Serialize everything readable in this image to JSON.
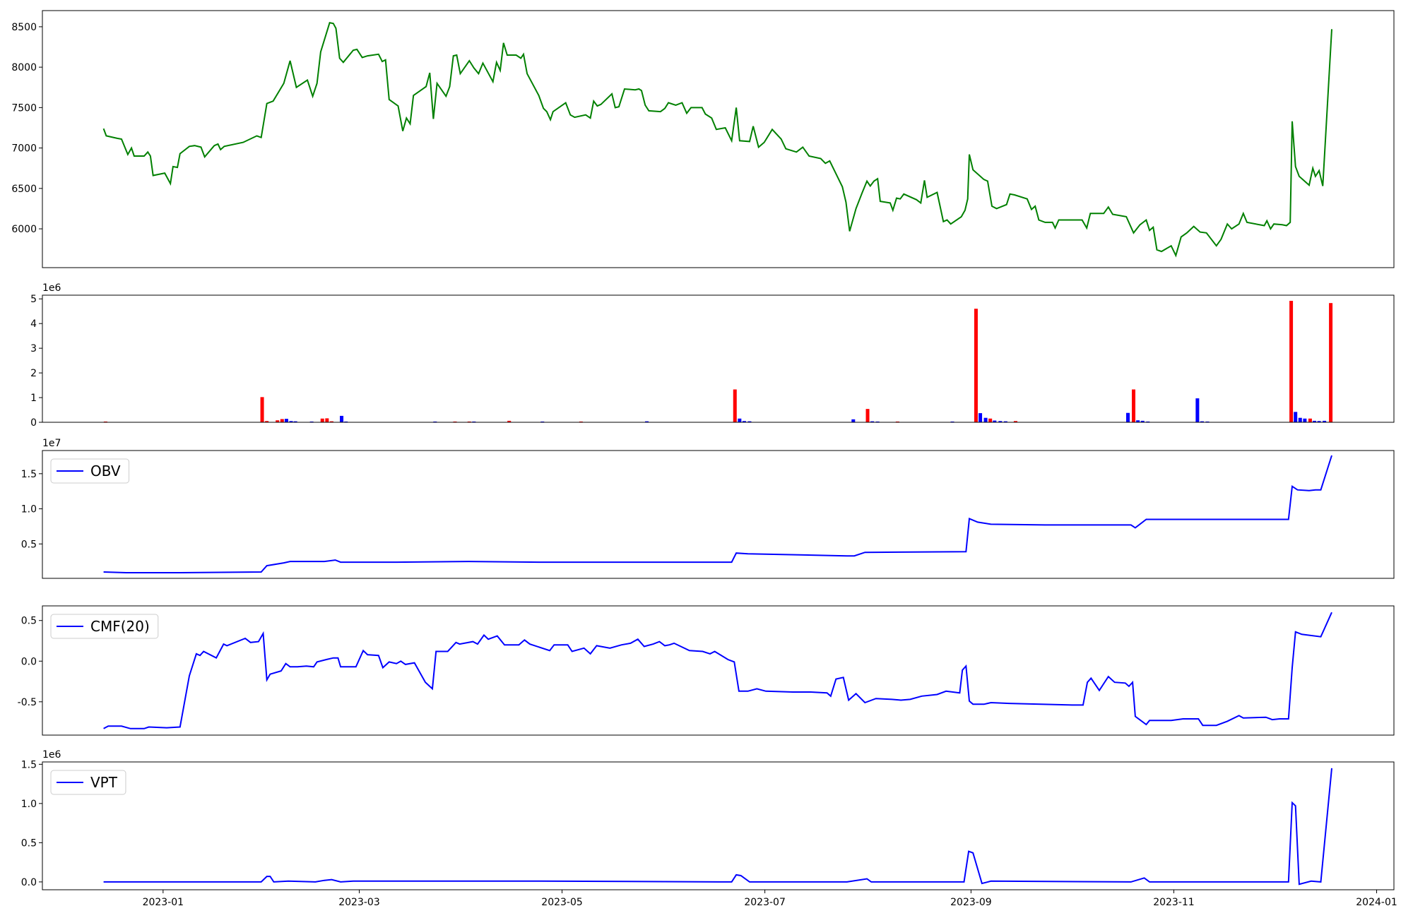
{
  "chart_data": [
    {
      "type": "line",
      "xlim": [
        -36.3,
        370.2
      ],
      "ylim": [
        5520,
        8700
      ],
      "yticks": [
        6000,
        6500,
        7000,
        7500,
        8000,
        8500
      ],
      "x": [
        -17.9,
        -17.1,
        -13.8,
        -12.5,
        -10.6,
        -9.5,
        -8.7,
        -5.7,
        -4.6,
        -3.8,
        -3.0,
        0.5,
        2.2,
        3.0,
        4.3,
        5.1,
        7.9,
        9.5,
        11.4,
        12.5,
        15.4,
        16.5,
        17.3,
        18.4,
        24.1,
        28.2,
        29.5,
        31.2,
        33.1,
        36.3,
        38.2,
        40.1,
        43.4,
        45.0,
        46.3,
        47.4,
        50.1,
        51.2,
        52.0,
        53.1,
        54.2,
        57.2,
        58.3,
        59.9,
        61.5,
        64.8,
        65.9,
        66.9,
        68.0,
        70.7,
        72.1,
        73.2,
        74.3,
        75.3,
        79.1,
        80.2,
        81.3,
        82.4,
        85.1,
        86.2,
        87.3,
        88.3,
        89.4,
        92.1,
        93.5,
        94.9,
        96.2,
        99.2,
        100.3,
        101.4,
        102.4,
        103.5,
        106.2,
        107.6,
        108.4,
        109.5,
        113.0,
        114.4,
        115.4,
        116.5,
        117.3,
        121.1,
        122.5,
        123.8,
        127.1,
        128.5,
        129.5,
        130.6,
        131.7,
        135.0,
        136.0,
        137.1,
        138.8,
        142.0,
        143.1,
        143.9,
        145.0,
        146.1,
        149.6,
        150.9,
        152.0,
        154.2,
        156.1,
        157.5,
        158.8,
        162.1,
        163.1,
        165.0,
        166.4,
        169.1,
        171.0,
        172.4,
        173.4,
        176.4,
        177.5,
        179.1,
        180.8,
        183.2,
        185.9,
        187.3,
        190.5,
        192.4,
        194.3,
        197.8,
        199.2,
        200.5,
        204.3,
        205.4,
        206.5,
        208.4,
        210.3,
        211.7,
        212.7,
        213.8,
        214.9,
        215.7,
        218.7,
        219.5,
        220.6,
        221.7,
        222.8,
        226.6,
        227.9,
        229.0,
        229.8,
        232.8,
        234.7,
        235.8,
        236.9,
        240.1,
        241.2,
        242.0,
        242.5,
        243.6,
        246.9,
        248.0,
        249.3,
        250.7,
        253.7,
        254.7,
        256.1,
        259.9,
        261.2,
        262.3,
        263.4,
        265.3,
        267.5,
        268.3,
        269.4,
        276.4,
        277.8,
        278.9,
        282.9,
        284.3,
        285.6,
        289.7,
        291.9,
        293.8,
        295.7,
        296.7,
        297.8,
        298.9,
        300.3,
        303.2,
        304.6,
        306.2,
        307.9,
        310.0,
        311.9,
        313.8,
        316.8,
        318.2,
        320.1,
        321.4,
        323.6,
        324.9,
        326.0,
        331.2,
        332.0,
        333.1,
        334.1,
        336.6,
        337.9,
        339.0,
        339.6,
        340.6,
        341.7,
        344.7,
        345.8,
        346.6,
        347.7,
        348.8,
        351.5
      ],
      "series": [
        {
          "color": "#008000",
          "values": [
            7240,
            7150,
            7120,
            7110,
            6920,
            7000,
            6900,
            6900,
            6950,
            6900,
            6660,
            6690,
            6560,
            6770,
            6760,
            6930,
            7020,
            7030,
            7010,
            6890,
            7030,
            7050,
            6980,
            7020,
            7070,
            7150,
            7130,
            7550,
            7580,
            7800,
            8080,
            7750,
            7840,
            7640,
            7800,
            8190,
            8550,
            8540,
            8480,
            8110,
            8060,
            8210,
            8220,
            8120,
            8140,
            8160,
            8070,
            8090,
            7600,
            7520,
            7210,
            7370,
            7300,
            7650,
            7760,
            7930,
            7360,
            7800,
            7640,
            7760,
            8140,
            8150,
            7920,
            8080,
            7990,
            7920,
            8050,
            7820,
            8060,
            7960,
            8300,
            8150,
            8150,
            8110,
            8160,
            7920,
            7650,
            7490,
            7450,
            7350,
            7450,
            7560,
            7410,
            7380,
            7410,
            7370,
            7580,
            7520,
            7540,
            7670,
            7500,
            7510,
            7730,
            7720,
            7730,
            7710,
            7530,
            7460,
            7450,
            7490,
            7560,
            7530,
            7560,
            7430,
            7500,
            7500,
            7420,
            7370,
            7230,
            7250,
            7090,
            7500,
            7090,
            7080,
            7270,
            7010,
            7070,
            7230,
            7110,
            6990,
            6950,
            7010,
            6900,
            6870,
            6810,
            6840,
            6520,
            6330,
            5970,
            6250,
            6450,
            6590,
            6530,
            6590,
            6620,
            6340,
            6320,
            6230,
            6380,
            6370,
            6430,
            6360,
            6320,
            6600,
            6390,
            6450,
            6090,
            6110,
            6060,
            6150,
            6230,
            6370,
            6920,
            6730,
            6610,
            6590,
            6280,
            6250,
            6300,
            6430,
            6420,
            6370,
            6240,
            6280,
            6110,
            6080,
            6080,
            6010,
            6110,
            6110,
            6010,
            6190,
            6190,
            6270,
            6180,
            6150,
            5950,
            6050,
            6110,
            5980,
            6020,
            5740,
            5720,
            5790,
            5670,
            5900,
            5950,
            6030,
            5960,
            5950,
            5790,
            5870,
            6060,
            6000,
            6060,
            6190,
            6080,
            6040,
            6100,
            6000,
            6060,
            6050,
            6040,
            6080,
            7330,
            6770,
            6650,
            6540,
            6750,
            6650,
            6720,
            6530,
            8470
          ]
        }
      ]
    },
    {
      "type": "bar",
      "xlim": [
        -36.3,
        370.2
      ],
      "ylim": [
        0,
        5.15
      ],
      "yticks": [
        0,
        1,
        2,
        3,
        4,
        5
      ],
      "offset_label": "1e6",
      "x": [
        -17.3,
        29.8,
        31.2,
        34.4,
        35.8,
        37.1,
        38.5,
        39.8,
        44.7,
        47.9,
        49.3,
        50.7,
        53.7,
        55.0,
        81.8,
        87.8,
        92.1,
        93.5,
        104.1,
        114.1,
        125.7,
        145.5,
        172.0,
        173.4,
        174.8,
        176.4,
        207.6,
        211.9,
        213.3,
        214.9,
        220.9,
        237.4,
        244.5,
        245.8,
        247.4,
        248.8,
        250.1,
        251.8,
        253.4,
        256.4,
        290.2,
        291.9,
        293.2,
        294.6,
        296.2,
        311.1,
        312.5,
        314.1,
        339.3,
        340.6,
        342.0,
        343.4,
        345.0,
        346.3,
        347.7,
        349.3,
        351.2
      ],
      "values": [
        0.03,
        1.02,
        0.05,
        0.08,
        0.13,
        0.14,
        0.05,
        0.04,
        0.03,
        0.15,
        0.16,
        0.04,
        0.26,
        0.03,
        0.03,
        0.03,
        0.03,
        0.03,
        0.06,
        0.03,
        0.03,
        0.04,
        1.33,
        0.15,
        0.05,
        0.04,
        0.12,
        0.54,
        0.04,
        0.03,
        0.03,
        0.03,
        4.6,
        0.37,
        0.18,
        0.15,
        0.07,
        0.05,
        0.04,
        0.05,
        0.38,
        1.33,
        0.08,
        0.06,
        0.03,
        0.97,
        0.04,
        0.03,
        4.92,
        0.42,
        0.18,
        0.15,
        0.15,
        0.06,
        0.05,
        0.06,
        4.83
      ],
      "colors": [
        "#ff0000",
        "#ff0000",
        "#ff0000",
        "#ff0000",
        "#ff0000",
        "#0000ff",
        "#0000ff",
        "#0000ff",
        "#0000ff",
        "#ff0000",
        "#ff0000",
        "#ff0000",
        "#0000ff",
        "#0000ff",
        "#0000ff",
        "#ff0000",
        "#ff0000",
        "#0000ff",
        "#ff0000",
        "#0000ff",
        "#ff0000",
        "#0000ff",
        "#ff0000",
        "#0000ff",
        "#0000ff",
        "#0000ff",
        "#0000ff",
        "#ff0000",
        "#0000ff",
        "#0000ff",
        "#ff0000",
        "#0000ff",
        "#ff0000",
        "#0000ff",
        "#0000ff",
        "#ff0000",
        "#0000ff",
        "#0000ff",
        "#0000ff",
        "#ff0000",
        "#0000ff",
        "#ff0000",
        "#0000ff",
        "#0000ff",
        "#0000ff",
        "#0000ff",
        "#0000ff",
        "#0000ff",
        "#ff0000",
        "#0000ff",
        "#0000ff",
        "#0000ff",
        "#ff0000",
        "#0000ff",
        "#0000ff",
        "#0000ff",
        "#ff0000"
      ]
    },
    {
      "type": "line",
      "xlim": [
        -36.3,
        370.2
      ],
      "ylim": [
        0.01,
        1.83
      ],
      "yticks": [
        0.5,
        {
          "value": 1.0,
          "label": "1.0"
        },
        1.5
      ],
      "offset_label": "1e7",
      "legend": "upper left",
      "x": [
        -17.9,
        -11.1,
        5.1,
        29.5,
        31.2,
        36.3,
        38.2,
        48.5,
        51.8,
        53.4,
        70.2,
        91.9,
        113.5,
        140.6,
        171.0,
        172.4,
        175.9,
        205.7,
        207.9,
        211.1,
        241.5,
        242.5,
        245.0,
        249.0,
        265.3,
        291.1,
        292.4,
        295.7,
        308.7,
        338.5,
        339.6,
        341.2,
        344.7,
        346.6,
        348.2,
        351.5
      ],
      "series": [
        {
          "name": "OBV",
          "color": "#0000ff",
          "values": [
            0.1,
            0.09,
            0.09,
            0.1,
            0.19,
            0.23,
            0.25,
            0.25,
            0.27,
            0.24,
            0.24,
            0.25,
            0.24,
            0.24,
            0.24,
            0.37,
            0.36,
            0.33,
            0.33,
            0.38,
            0.39,
            0.86,
            0.81,
            0.78,
            0.77,
            0.77,
            0.73,
            0.85,
            0.85,
            0.85,
            1.32,
            1.27,
            1.26,
            1.27,
            1.27,
            1.76
          ]
        }
      ]
    },
    {
      "type": "line",
      "xlim": [
        -36.3,
        370.2
      ],
      "ylim": [
        -0.91,
        0.68
      ],
      "yticks": [
        -0.5,
        {
          "value": 0,
          "label": "0.0"
        },
        0.5
      ],
      "legend": "upper left",
      "x": [
        -17.9,
        -16.5,
        -12.5,
        -9.8,
        -5.7,
        -4.3,
        1.1,
        5.1,
        7.9,
        10.0,
        11.1,
        12.2,
        16.0,
        18.2,
        19.2,
        24.7,
        26.3,
        28.7,
        30.1,
        31.2,
        32.2,
        35.5,
        36.9,
        38.2,
        40.4,
        43.1,
        45.3,
        46.3,
        49.1,
        51.2,
        52.6,
        53.4,
        58.0,
        60.2,
        61.5,
        64.8,
        66.1,
        68.0,
        70.2,
        71.5,
        72.9,
        75.6,
        78.9,
        81.0,
        82.1,
        85.6,
        88.1,
        89.2,
        93.2,
        94.6,
        96.5,
        97.8,
        100.5,
        102.7,
        107.0,
        108.7,
        110.3,
        116.3,
        117.6,
        121.7,
        123.0,
        126.6,
        128.5,
        130.4,
        134.4,
        137.9,
        140.6,
        142.8,
        144.7,
        147.4,
        149.3,
        150.9,
        152.3,
        153.7,
        158.3,
        162.3,
        164.5,
        165.9,
        169.9,
        171.8,
        173.2,
        175.9,
        178.6,
        181.3,
        189.4,
        194.8,
        199.7,
        200.8,
        202.4,
        204.6,
        206.2,
        208.4,
        211.1,
        214.4,
        219.2,
        221.9,
        224.7,
        228.2,
        232.8,
        235.5,
        239.6,
        240.4,
        241.5,
        242.5,
        243.6,
        246.9,
        249.0,
        254.5,
        273.4,
        276.7,
        278.0,
        279.1,
        281.6,
        284.3,
        286.2,
        289.4,
        290.5,
        291.6,
        292.4,
        295.7,
        296.7,
        303.2,
        306.8,
        311.4,
        312.7,
        316.8,
        320.1,
        323.6,
        324.9,
        331.7,
        333.6,
        335.8,
        338.5,
        339.6,
        340.6,
        342.5,
        348.2,
        351.5
      ],
      "series": [
        {
          "name": "CMF(20)",
          "color": "#0000ff",
          "values": [
            -0.83,
            -0.8,
            -0.8,
            -0.83,
            -0.83,
            -0.81,
            -0.82,
            -0.81,
            -0.18,
            0.09,
            0.07,
            0.12,
            0.04,
            0.21,
            0.19,
            0.28,
            0.23,
            0.24,
            0.34,
            -0.23,
            -0.16,
            -0.12,
            -0.03,
            -0.07,
            -0.07,
            -0.06,
            -0.07,
            -0.01,
            0.02,
            0.04,
            0.04,
            -0.07,
            -0.07,
            0.13,
            0.08,
            0.07,
            -0.08,
            -0.01,
            -0.03,
            0.0,
            -0.04,
            -0.02,
            -0.26,
            -0.34,
            0.12,
            0.12,
            0.23,
            0.21,
            0.24,
            0.21,
            0.32,
            0.27,
            0.31,
            0.2,
            0.2,
            0.26,
            0.21,
            0.13,
            0.2,
            0.2,
            0.12,
            0.16,
            0.09,
            0.19,
            0.16,
            0.2,
            0.22,
            0.27,
            0.18,
            0.21,
            0.24,
            0.19,
            0.2,
            0.22,
            0.13,
            0.12,
            0.09,
            0.12,
            0.02,
            -0.01,
            -0.37,
            -0.37,
            -0.34,
            -0.37,
            -0.38,
            -0.38,
            -0.39,
            -0.43,
            -0.22,
            -0.2,
            -0.48,
            -0.4,
            -0.51,
            -0.46,
            -0.47,
            -0.48,
            -0.47,
            -0.43,
            -0.41,
            -0.37,
            -0.39,
            -0.11,
            -0.06,
            -0.49,
            -0.53,
            -0.53,
            -0.51,
            -0.52,
            -0.54,
            -0.54,
            -0.26,
            -0.21,
            -0.36,
            -0.19,
            -0.26,
            -0.27,
            -0.31,
            -0.26,
            -0.68,
            -0.78,
            -0.73,
            -0.73,
            -0.71,
            -0.71,
            -0.79,
            -0.79,
            -0.74,
            -0.67,
            -0.7,
            -0.69,
            -0.72,
            -0.71,
            -0.71,
            -0.08,
            0.36,
            0.33,
            0.3,
            0.6
          ]
        }
      ]
    },
    {
      "type": "line",
      "xlim": [
        -36.3,
        370.2
      ],
      "ylim": [
        -0.1,
        1.53
      ],
      "yticks": [
        {
          "value": 0,
          "label": "0.0"
        },
        0.5,
        {
          "value": 1,
          "label": "1.0"
        },
        1.5
      ],
      "offset_label": "1e6",
      "legend": "upper left",
      "xticks": [
        {
          "value": 0,
          "label": "2023-01"
        },
        {
          "value": 59,
          "label": "2023-03"
        },
        {
          "value": 120,
          "label": "2023-05"
        },
        {
          "value": 181,
          "label": "2023-07"
        },
        {
          "value": 243,
          "label": "2023-09"
        },
        {
          "value": 304,
          "label": "2023-11"
        },
        {
          "value": 365,
          "label": "2024-01"
        }
      ],
      "x": [
        -17.9,
        29.5,
        31.2,
        32.2,
        33.3,
        37.7,
        45.8,
        48.5,
        50.7,
        53.4,
        57.2,
        113.5,
        171.0,
        172.4,
        173.8,
        176.4,
        205.7,
        211.7,
        213.0,
        240.9,
        242.3,
        243.6,
        246.3,
        249.0,
        291.1,
        295.1,
        296.7,
        338.5,
        339.6,
        340.6,
        341.7,
        345.3,
        348.2,
        351.5
      ],
      "series": [
        {
          "name": "VPT",
          "color": "#0000ff",
          "values": [
            0.0,
            0.0,
            0.07,
            0.07,
            0.0,
            0.01,
            0.0,
            0.02,
            0.03,
            0.0,
            0.01,
            0.01,
            0.0,
            0.09,
            0.08,
            0.0,
            0.0,
            0.04,
            0.0,
            0.0,
            0.39,
            0.37,
            -0.02,
            0.01,
            0.0,
            0.05,
            0.0,
            0.0,
            1.01,
            0.97,
            -0.03,
            0.01,
            0.0,
            1.45
          ]
        }
      ]
    }
  ]
}
